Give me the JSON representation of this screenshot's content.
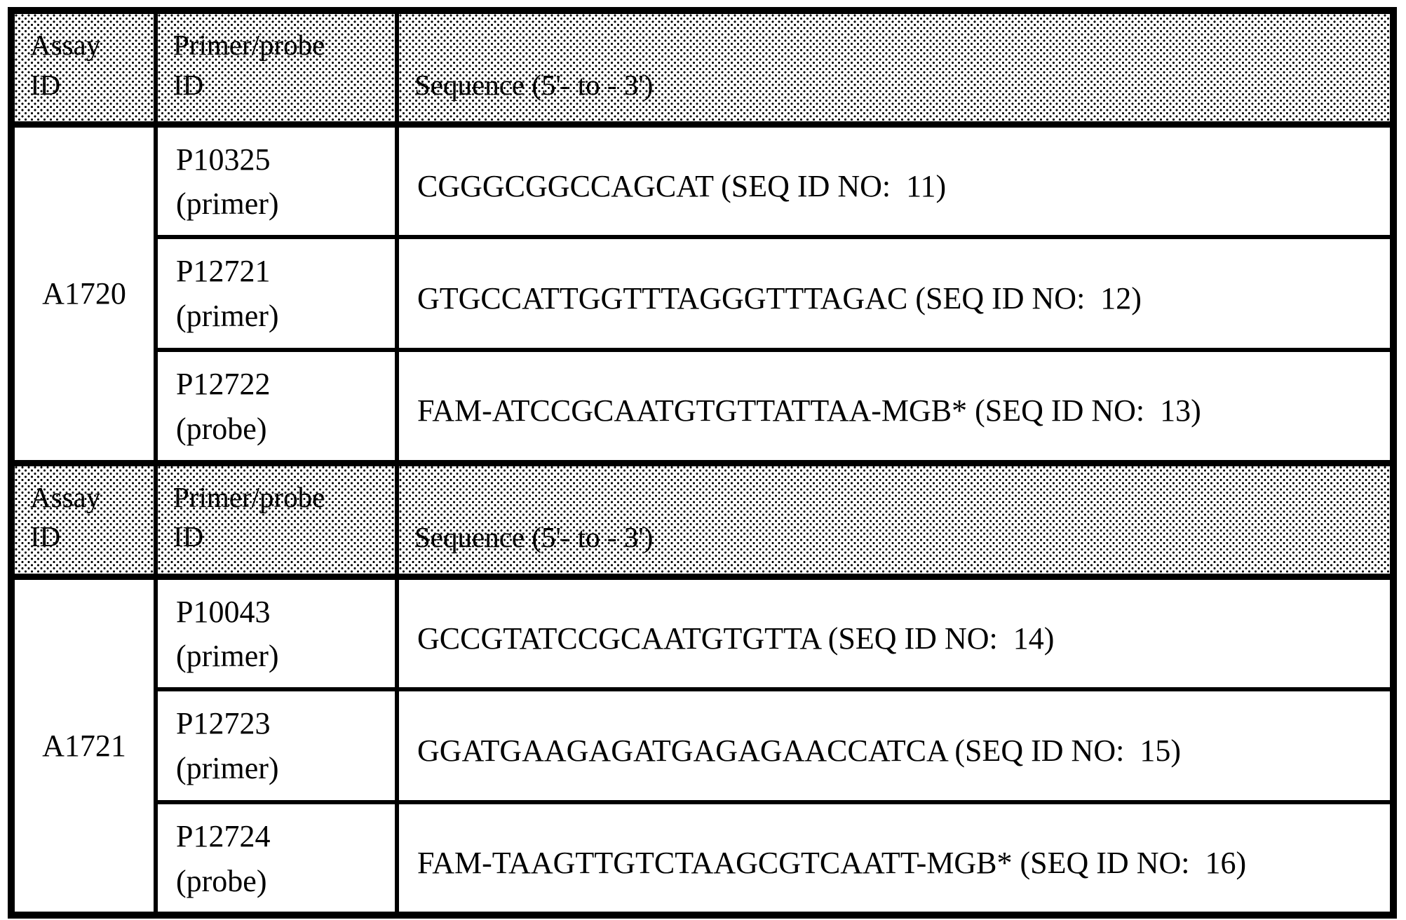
{
  "table": {
    "header": {
      "col1_line1": "Assay",
      "col1_line2": "ID",
      "col2_line1": "Primer/probe",
      "col2_line2": "ID",
      "col3": "Sequence (5'- to - 3')"
    },
    "sections": [
      {
        "assay_id": "A1720",
        "rows": [
          {
            "id": "P10325",
            "type": "(primer)",
            "sequence": "CGGGCGGCCAGCAT (SEQ ID NO:  11)"
          },
          {
            "id": "P12721",
            "type": "(primer)",
            "sequence": "GTGCCATTGGTTTAGGGTTTAGAC (SEQ ID NO:  12)"
          },
          {
            "id": "P12722",
            "type": "(probe)",
            "sequence": "FAM-ATCCGCAATGTGTTATTAA-MGB* (SEQ ID NO:  13)"
          }
        ]
      },
      {
        "assay_id": "A1721",
        "rows": [
          {
            "id": "P10043",
            "type": "(primer)",
            "sequence": "GCCGTATCCGCAATGTGTTA (SEQ ID NO:  14)"
          },
          {
            "id": "P12723",
            "type": "(primer)",
            "sequence": "GGATGAAGAGATGAGAGAACCATCA (SEQ ID NO:  15)"
          },
          {
            "id": "P12724",
            "type": "(probe)",
            "sequence": "FAM-TAAGTTGTCTAAGCGTCAATT-MGB* (SEQ ID NO:  16)"
          }
        ]
      }
    ]
  }
}
